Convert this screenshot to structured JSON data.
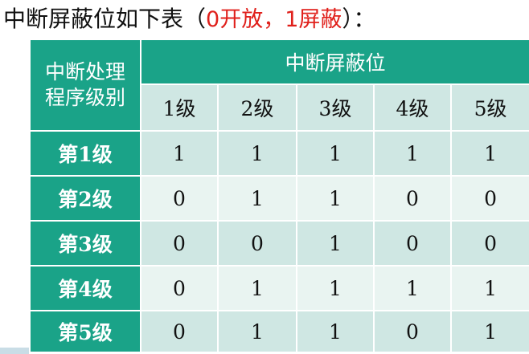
{
  "title": {
    "prefix": "中断屏蔽位如下表（",
    "highlight": "0开放，1屏蔽",
    "suffix": "）："
  },
  "table": {
    "corner_header": [
      "中断处理",
      "程序级别"
    ],
    "group_header": "中断屏蔽位",
    "columns": [
      "1级",
      "2级",
      "3级",
      "4级",
      "5级"
    ],
    "rows": [
      {
        "label": "第1级",
        "values": [
          "1",
          "1",
          "1",
          "1",
          "1"
        ]
      },
      {
        "label": "第2级",
        "values": [
          "0",
          "1",
          "1",
          "0",
          "0"
        ]
      },
      {
        "label": "第3级",
        "values": [
          "0",
          "0",
          "1",
          "0",
          "0"
        ]
      },
      {
        "label": "第4级",
        "values": [
          "0",
          "1",
          "1",
          "1",
          "1"
        ]
      },
      {
        "label": "第5级",
        "values": [
          "0",
          "1",
          "1",
          "0",
          "1"
        ]
      }
    ]
  },
  "colors": {
    "header_green": "#1aa388",
    "row_light": "#cfe7e3",
    "row_lighter": "#e9f4f1",
    "highlight_red": "#e0201b"
  }
}
